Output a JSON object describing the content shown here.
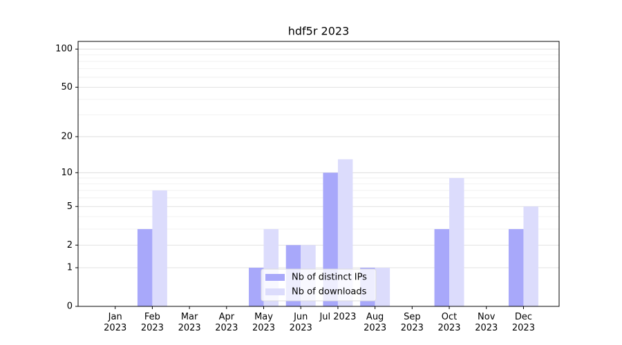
{
  "chart_data": {
    "type": "bar",
    "title": "hdf5r 2023",
    "categories": [
      "Jan 2023",
      "Feb 2023",
      "Mar 2023",
      "Apr 2023",
      "May 2023",
      "Jun 2023",
      "Jul 2023",
      "Aug 2023",
      "Sep 2023",
      "Oct 2023",
      "Nov 2023",
      "Dec 2023"
    ],
    "series": [
      {
        "name": "Nb of distinct IPs",
        "color": "#a8a8fa",
        "values": [
          0,
          3,
          0,
          0,
          1,
          2,
          10,
          1,
          0,
          3,
          0,
          3
        ]
      },
      {
        "name": "Nb of downloads",
        "color": "#dcdcfc",
        "values": [
          0,
          7,
          0,
          0,
          3,
          2,
          13,
          1,
          0,
          9,
          0,
          5
        ]
      }
    ],
    "yscale": "log1p",
    "ylim": [
      0,
      115
    ],
    "yticks": [
      0,
      1,
      2,
      5,
      10,
      20,
      50,
      100
    ],
    "yticks_minor": [
      3,
      4,
      6,
      7,
      8,
      9,
      30,
      40,
      60,
      70,
      80,
      90
    ],
    "grid": true,
    "legend": "lower center"
  }
}
